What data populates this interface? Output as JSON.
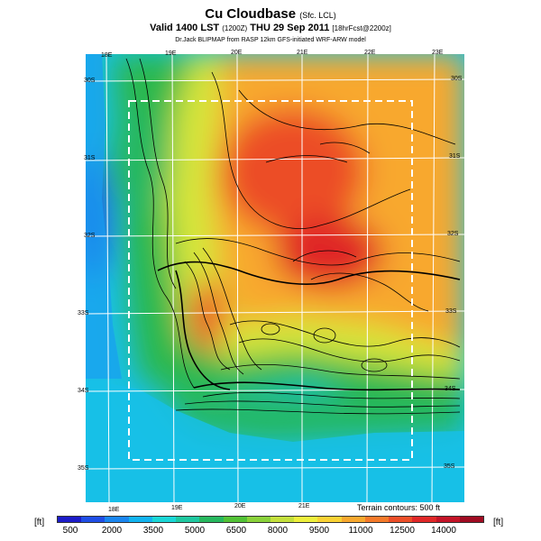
{
  "title": {
    "main": "Cu Cloudbase",
    "main_suffix": "(Sfc. LCL)",
    "valid": "Valid 1400 LST",
    "valid_utc": "(1200Z)",
    "valid_date": "THU 29 Sep 2011",
    "forecast": "[18hrFcst@2200z]",
    "credit": "Dr.Jack BLIPMAP from RASP 12km GFS-initiated WRF-ARW model"
  },
  "grid_labels": {
    "lon_top": [
      "18E",
      "19E",
      "20E",
      "21E",
      "22E",
      "23E"
    ],
    "lon_bottom": [
      "18E",
      "19E",
      "20E",
      "21E"
    ],
    "lat_left": [
      "30S",
      "31S",
      "32S",
      "33S",
      "34S",
      "35S"
    ],
    "lat_right": [
      "30S",
      "31S",
      "32S",
      "33S",
      "34S",
      "35S"
    ]
  },
  "contour_note": "Terrain contours: 500 ft",
  "legend": {
    "unit": "[ft]",
    "tick_labels": [
      "500",
      "2000",
      "3500",
      "5000",
      "6500",
      "8000",
      "9500",
      "11000",
      "12500",
      "14000"
    ],
    "colors": [
      "#1c1cc8",
      "#1f4ee6",
      "#1a86f0",
      "#12b4f0",
      "#1ad7d7",
      "#1ec8a0",
      "#27b85e",
      "#52c236",
      "#8ad23a",
      "#c4e03c",
      "#eef03c",
      "#fad234",
      "#f8a82e",
      "#f57a2a",
      "#ec4e28",
      "#e02828",
      "#c41428",
      "#a00c22"
    ]
  }
}
